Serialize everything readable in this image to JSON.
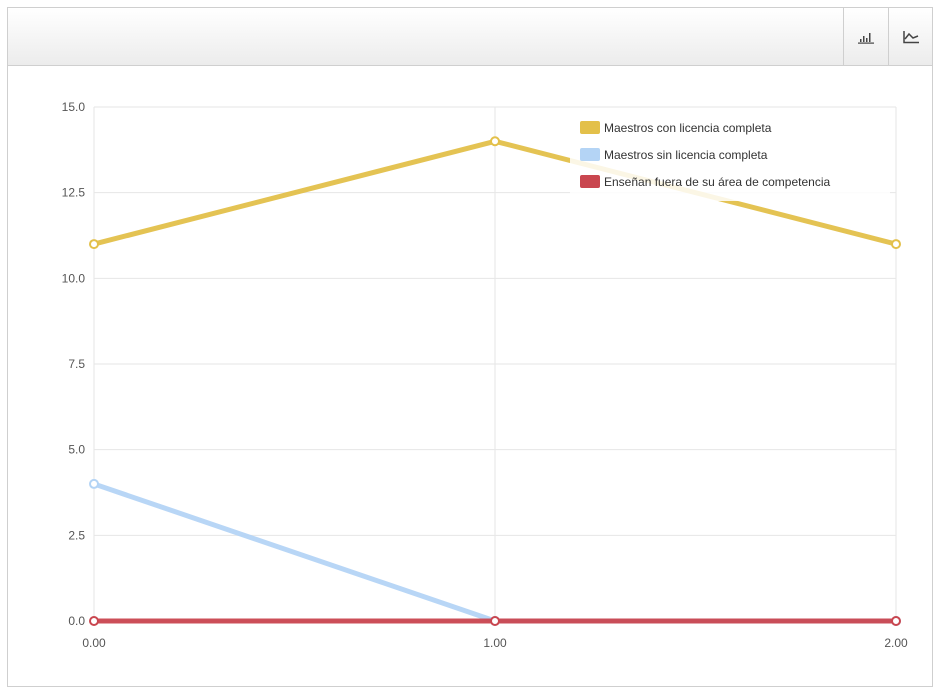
{
  "toolbar": {
    "buttons": [
      {
        "name": "bar-chart-icon"
      },
      {
        "name": "line-chart-icon"
      }
    ]
  },
  "chart_data": {
    "type": "line",
    "x": [
      0,
      1,
      2
    ],
    "x_tick_labels": [
      "0.00",
      "1.00",
      "2.00"
    ],
    "y_tick_labels": [
      "0.0",
      "2.5",
      "5.0",
      "7.5",
      "10.0",
      "12.5",
      "15.0"
    ],
    "ylim": [
      0,
      15
    ],
    "xlim": [
      0,
      2
    ],
    "grid": true,
    "legend_position": "top-right",
    "series": [
      {
        "name": "Maestros con licencia completa",
        "values": [
          11,
          14,
          11
        ],
        "color": "#e3c04a"
      },
      {
        "name": "Maestros sin licencia completa",
        "values": [
          4,
          0,
          0
        ],
        "color": "#b4d4f5"
      },
      {
        "name": "Enseñan fuera de su área de competencia",
        "values": [
          0,
          0,
          0
        ],
        "color": "#c9464f"
      }
    ]
  }
}
